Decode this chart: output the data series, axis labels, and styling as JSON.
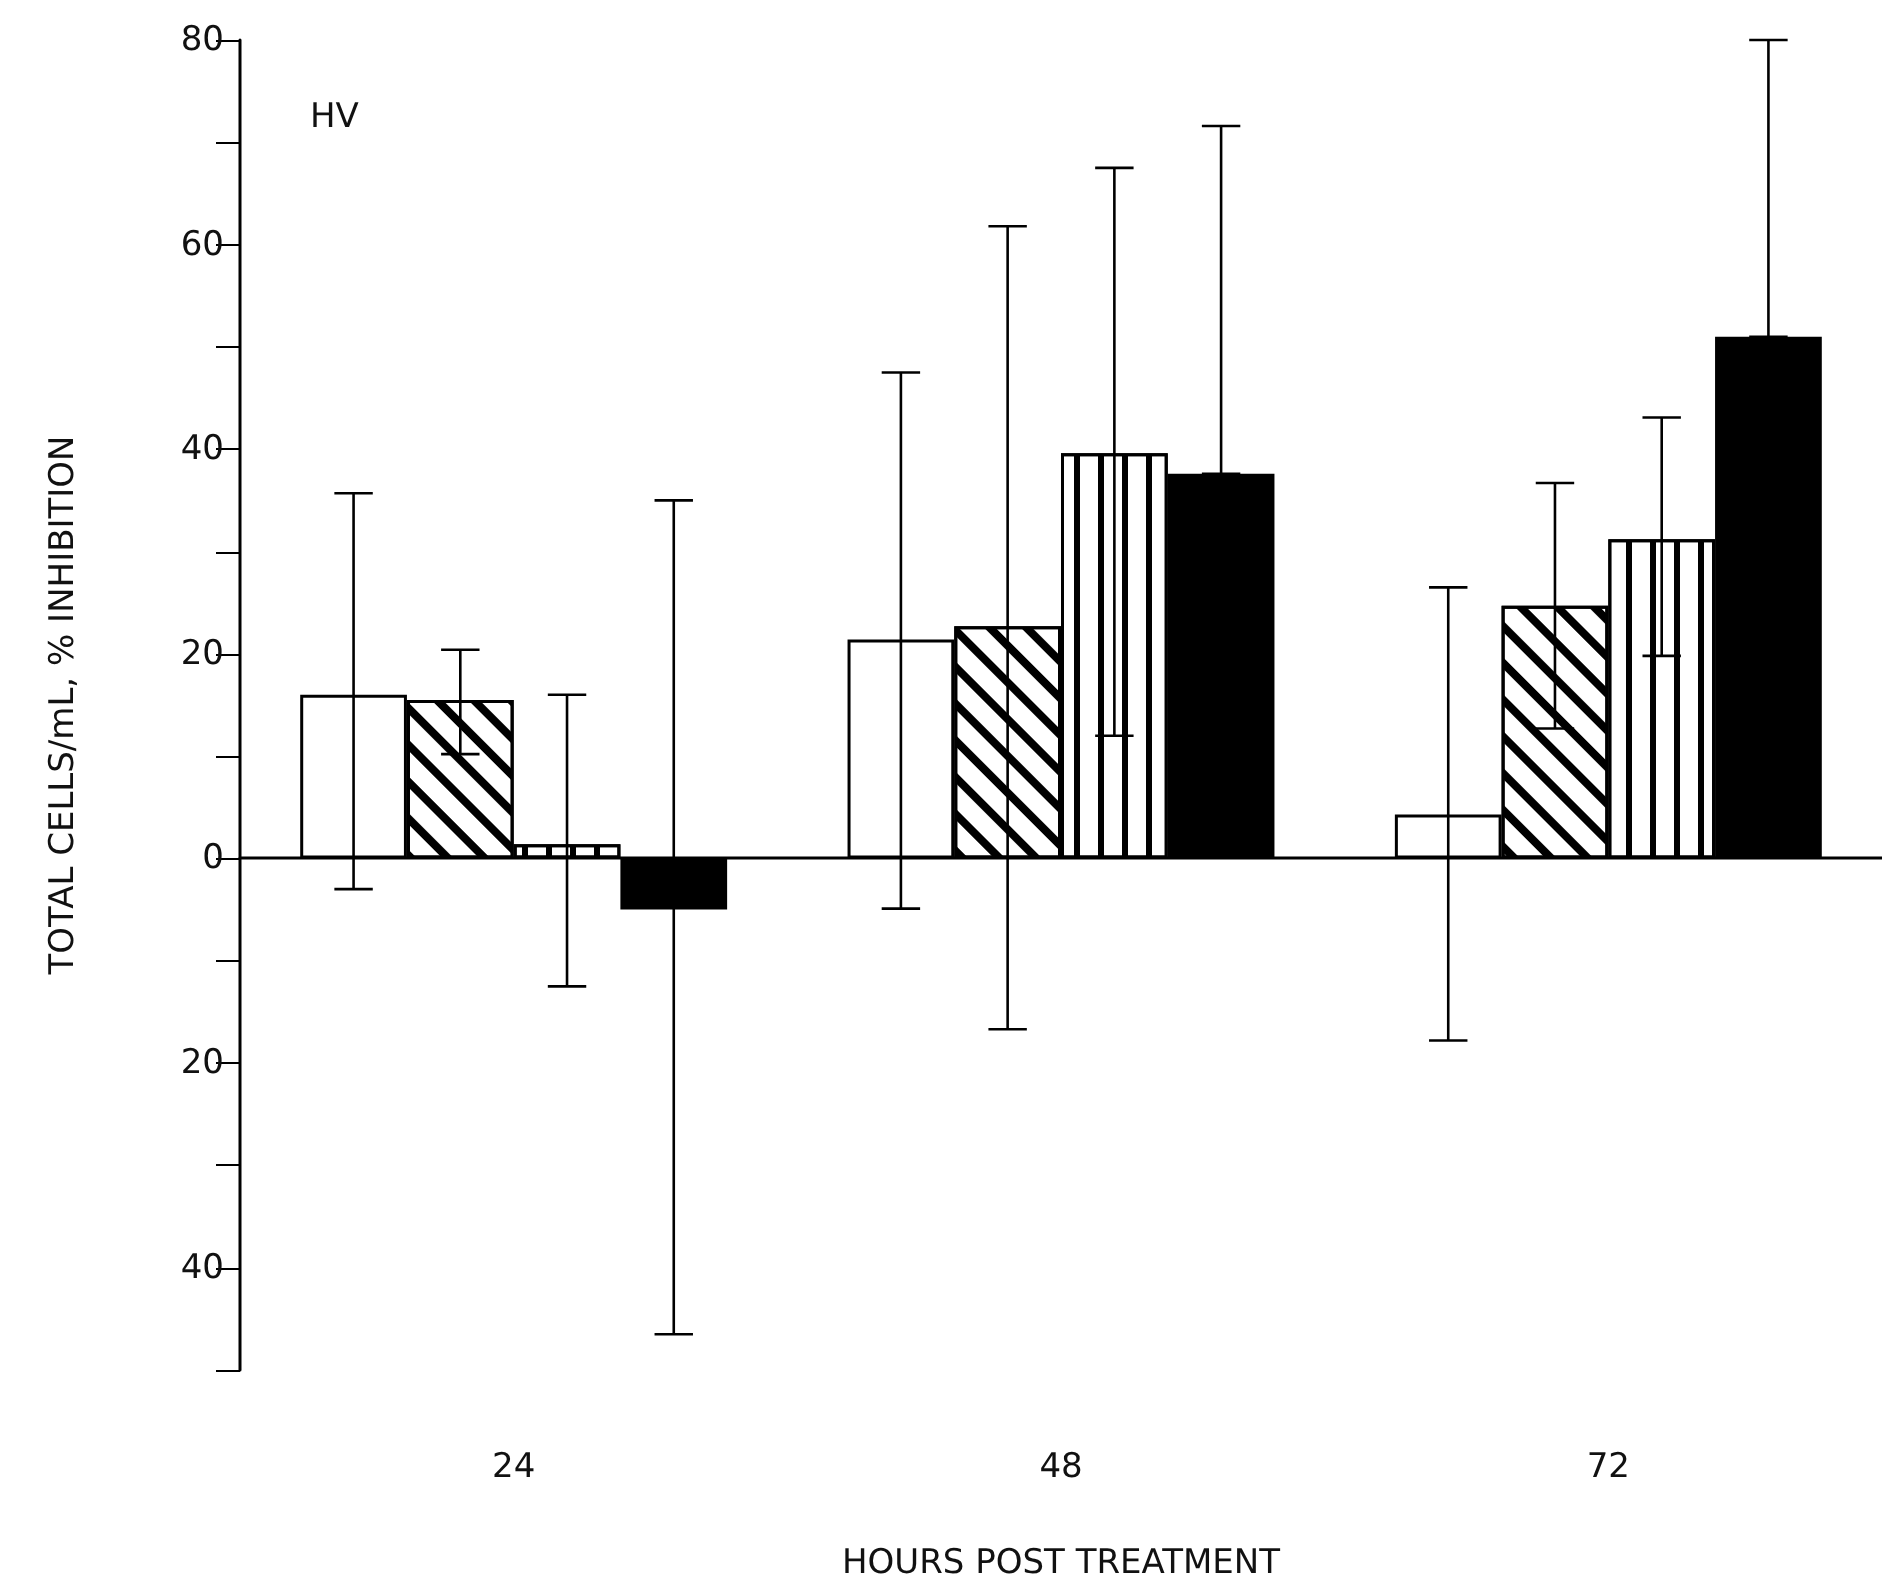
{
  "chart_data": {
    "type": "bar",
    "xlabel": "HOURS POST TREATMENT",
    "ylabel": "TOTAL CELLS/mL, % INHIBITION",
    "annotations": [
      "HV"
    ],
    "categories": [
      "24",
      "48",
      "72"
    ],
    "ylim": [
      -50,
      80
    ],
    "yticks": [
      {
        "value": -50,
        "label": null
      },
      {
        "value": -40,
        "label": "40"
      },
      {
        "value": -30,
        "label": null
      },
      {
        "value": -20,
        "label": "20"
      },
      {
        "value": -10,
        "label": null
      },
      0,
      {
        "value": 10,
        "label": null
      },
      20,
      {
        "value": 30,
        "label": null
      },
      40,
      {
        "value": 50,
        "label": null
      },
      60,
      {
        "value": 70,
        "label": null
      },
      80
    ],
    "series": [
      {
        "color": "#ffffff",
        "values": [
          16,
          21.4,
          4.3
        ],
        "errors": [
          [
            -3,
            35.7
          ],
          [
            -4.9,
            47.5
          ],
          [
            -17.8,
            26.5
          ]
        ]
      },
      {
        "color": "#ffffff",
        "values": [
          15.5,
          22.7,
          24.7
        ],
        "errors": [
          [
            10.2,
            20.4
          ],
          [
            -16.7,
            61.8
          ],
          [
            12.7,
            36.7
          ]
        ]
      },
      {
        "color": "#ffffff",
        "values": [
          1.4,
          39.6,
          31.2
        ],
        "errors": [
          [
            -12.5,
            16
          ],
          [
            12,
            67.5
          ],
          [
            19.8,
            43.1
          ]
        ]
      },
      {
        "color": "#000000",
        "values": [
          -5,
          37.6,
          51
        ],
        "errors": [
          [
            -46.5,
            35
          ],
          [
            37.6,
            71.6
          ],
          [
            51,
            80
          ]
        ]
      }
    ]
  }
}
